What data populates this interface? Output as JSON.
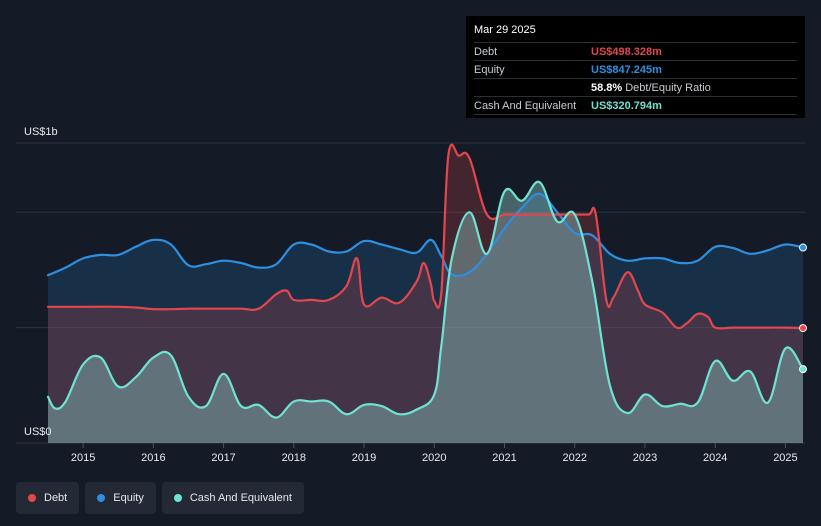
{
  "tooltip": {
    "date": "Mar 29 2025",
    "debt_label": "Debt",
    "debt_value": "US$498.328m",
    "equity_label": "Equity",
    "equity_value": "US$847.245m",
    "ratio_value": "58.8%",
    "ratio_label": "Debt/Equity Ratio",
    "cash_label": "Cash And Equivalent",
    "cash_value": "US$320.794m"
  },
  "legend": [
    {
      "label": "Debt",
      "color": "#e2474e"
    },
    {
      "label": "Equity",
      "color": "#2e8fe0"
    },
    {
      "label": "Cash And Equivalent",
      "color": "#6fe3d2"
    }
  ],
  "colors": {
    "debt": "#e2474e",
    "equity": "#2e8fe0",
    "cash": "#6fe3d2",
    "background": "#151b26"
  },
  "chart_data": {
    "type": "area",
    "y_axis_top_label": "US$1b",
    "y_axis_bottom_label": "US$0",
    "ylim": [
      0,
      1300
    ],
    "xlim": [
      2014.5,
      2025.25
    ],
    "grid": true,
    "x_ticks": [
      "2015",
      "2016",
      "2017",
      "2018",
      "2019",
      "2020",
      "2021",
      "2022",
      "2023",
      "2024",
      "2025"
    ],
    "series": [
      {
        "name": "Debt",
        "points": [
          [
            2014.5,
            590
          ],
          [
            2014.75,
            590
          ],
          [
            2015,
            590
          ],
          [
            2015.5,
            590
          ],
          [
            2015.75,
            587
          ],
          [
            2016,
            580
          ],
          [
            2016.25,
            580
          ],
          [
            2016.5,
            582
          ],
          [
            2016.75,
            582
          ],
          [
            2017,
            582
          ],
          [
            2017.25,
            582
          ],
          [
            2017.5,
            582
          ],
          [
            2017.75,
            645
          ],
          [
            2017.9,
            660
          ],
          [
            2018,
            620
          ],
          [
            2018.25,
            620
          ],
          [
            2018.5,
            620
          ],
          [
            2018.75,
            680
          ],
          [
            2018.9,
            800
          ],
          [
            2019,
            600
          ],
          [
            2019.25,
            630
          ],
          [
            2019.5,
            608
          ],
          [
            2019.75,
            700
          ],
          [
            2019.85,
            780
          ],
          [
            2019.95,
            690
          ],
          [
            2020,
            615
          ],
          [
            2020.1,
            650
          ],
          [
            2020.2,
            1245
          ],
          [
            2020.35,
            1245
          ],
          [
            2020.5,
            1235
          ],
          [
            2020.75,
            990
          ],
          [
            2021,
            990
          ],
          [
            2021.25,
            990
          ],
          [
            2021.5,
            990
          ],
          [
            2021.75,
            990
          ],
          [
            2022,
            990
          ],
          [
            2022.2,
            990
          ],
          [
            2022.3,
            990
          ],
          [
            2022.45,
            620
          ],
          [
            2022.55,
            630
          ],
          [
            2022.75,
            740
          ],
          [
            2022.9,
            660
          ],
          [
            2023,
            600
          ],
          [
            2023.25,
            565
          ],
          [
            2023.45,
            500
          ],
          [
            2023.6,
            520
          ],
          [
            2023.75,
            560
          ],
          [
            2023.9,
            545
          ],
          [
            2024,
            500
          ],
          [
            2024.25,
            500
          ],
          [
            2024.5,
            500
          ],
          [
            2024.75,
            500
          ],
          [
            2025,
            500
          ],
          [
            2025.25,
            498
          ]
        ]
      },
      {
        "name": "Equity",
        "points": [
          [
            2014.5,
            727
          ],
          [
            2014.75,
            760
          ],
          [
            2015,
            800
          ],
          [
            2015.25,
            815
          ],
          [
            2015.5,
            815
          ],
          [
            2015.75,
            850
          ],
          [
            2016,
            880
          ],
          [
            2016.25,
            860
          ],
          [
            2016.5,
            770
          ],
          [
            2016.75,
            775
          ],
          [
            2017,
            790
          ],
          [
            2017.25,
            780
          ],
          [
            2017.5,
            760
          ],
          [
            2017.75,
            775
          ],
          [
            2018,
            860
          ],
          [
            2018.25,
            860
          ],
          [
            2018.5,
            830
          ],
          [
            2018.75,
            830
          ],
          [
            2019,
            875
          ],
          [
            2019.25,
            860
          ],
          [
            2019.5,
            840
          ],
          [
            2019.75,
            825
          ],
          [
            2019.95,
            880
          ],
          [
            2020.1,
            810
          ],
          [
            2020.25,
            730
          ],
          [
            2020.5,
            740
          ],
          [
            2020.75,
            820
          ],
          [
            2021,
            930
          ],
          [
            2021.25,
            1020
          ],
          [
            2021.5,
            1080
          ],
          [
            2021.75,
            1000
          ],
          [
            2022,
            910
          ],
          [
            2022.25,
            900
          ],
          [
            2022.5,
            820
          ],
          [
            2022.75,
            790
          ],
          [
            2023,
            800
          ],
          [
            2023.25,
            800
          ],
          [
            2023.5,
            780
          ],
          [
            2023.75,
            790
          ],
          [
            2024,
            850
          ],
          [
            2024.25,
            845
          ],
          [
            2024.5,
            820
          ],
          [
            2024.75,
            835
          ],
          [
            2025,
            860
          ],
          [
            2025.25,
            847
          ]
        ]
      },
      {
        "name": "Cash And Equivalent",
        "points": [
          [
            2014.5,
            200
          ],
          [
            2014.6,
            150
          ],
          [
            2014.75,
            180
          ],
          [
            2015,
            340
          ],
          [
            2015.25,
            370
          ],
          [
            2015.5,
            245
          ],
          [
            2015.75,
            285
          ],
          [
            2016,
            370
          ],
          [
            2016.25,
            380
          ],
          [
            2016.5,
            200
          ],
          [
            2016.75,
            160
          ],
          [
            2017,
            300
          ],
          [
            2017.25,
            160
          ],
          [
            2017.5,
            165
          ],
          [
            2017.75,
            110
          ],
          [
            2018,
            180
          ],
          [
            2018.25,
            180
          ],
          [
            2018.5,
            180
          ],
          [
            2018.75,
            125
          ],
          [
            2019,
            165
          ],
          [
            2019.25,
            160
          ],
          [
            2019.5,
            125
          ],
          [
            2019.75,
            145
          ],
          [
            2020,
            210
          ],
          [
            2020.1,
            420
          ],
          [
            2020.25,
            800
          ],
          [
            2020.5,
            1000
          ],
          [
            2020.75,
            820
          ],
          [
            2021,
            1090
          ],
          [
            2021.25,
            1050
          ],
          [
            2021.5,
            1130
          ],
          [
            2021.75,
            960
          ],
          [
            2022,
            990
          ],
          [
            2022.25,
            700
          ],
          [
            2022.5,
            250
          ],
          [
            2022.75,
            130
          ],
          [
            2023,
            210
          ],
          [
            2023.25,
            160
          ],
          [
            2023.5,
            170
          ],
          [
            2023.75,
            175
          ],
          [
            2024,
            355
          ],
          [
            2024.25,
            270
          ],
          [
            2024.5,
            310
          ],
          [
            2024.75,
            175
          ],
          [
            2025,
            410
          ],
          [
            2025.25,
            320
          ]
        ]
      }
    ]
  }
}
